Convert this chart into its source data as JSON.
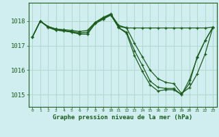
{
  "title": "Graphe pression niveau de la mer (hPa)",
  "background_color": "#d0eef0",
  "grid_color": "#b0d8cc",
  "line_color": "#1a5c1a",
  "text_color": "#1a5c1a",
  "xlim": [
    -0.5,
    23.5
  ],
  "ylim": [
    1014.5,
    1018.75
  ],
  "yticks": [
    1015,
    1016,
    1017,
    1018
  ],
  "xticks": [
    0,
    1,
    2,
    3,
    4,
    5,
    6,
    7,
    8,
    9,
    10,
    11,
    12,
    13,
    14,
    15,
    16,
    17,
    18,
    19,
    20,
    21,
    22,
    23
  ],
  "lines": [
    {
      "x": [
        0,
        1,
        2,
        3,
        4,
        5,
        6,
        7,
        8,
        9,
        10,
        11,
        12,
        13,
        14,
        15,
        16,
        17,
        18,
        19,
        20,
        21,
        22,
        23
      ],
      "y": [
        1017.35,
        1018.0,
        1017.78,
        1017.68,
        1017.65,
        1017.62,
        1017.58,
        1017.62,
        1017.95,
        1018.15,
        1018.3,
        1017.78,
        1017.72,
        1017.72,
        1017.72,
        1017.72,
        1017.72,
        1017.72,
        1017.72,
        1017.72,
        1017.72,
        1017.72,
        1017.72,
        1017.75
      ]
    },
    {
      "x": [
        0,
        1,
        2,
        3,
        4,
        5,
        6,
        7,
        8,
        9,
        10,
        11,
        12,
        13,
        14,
        15,
        16,
        17,
        18,
        19,
        20,
        21,
        22,
        23
      ],
      "y": [
        1017.35,
        1018.0,
        1017.78,
        1017.68,
        1017.62,
        1017.58,
        1017.52,
        1017.55,
        1017.95,
        1018.12,
        1018.28,
        1017.83,
        1017.73,
        1017.1,
        1016.55,
        1016.0,
        1015.65,
        1015.5,
        1015.45,
        1015.05,
        1015.28,
        1015.85,
        1016.65,
        1017.75
      ]
    },
    {
      "x": [
        0,
        1,
        2,
        3,
        4,
        5,
        6,
        7,
        8,
        9,
        10,
        11,
        12,
        13,
        14,
        15,
        16,
        17,
        18,
        19,
        20,
        21,
        22,
        23
      ],
      "y": [
        1017.35,
        1018.0,
        1017.75,
        1017.63,
        1017.6,
        1017.55,
        1017.48,
        1017.48,
        1017.9,
        1018.08,
        1018.25,
        1017.73,
        1017.55,
        1016.8,
        1016.2,
        1015.55,
        1015.3,
        1015.25,
        1015.25,
        1015.0,
        1015.45,
        1016.55,
        1017.2,
        1017.75
      ]
    },
    {
      "x": [
        0,
        1,
        2,
        3,
        4,
        5,
        6,
        7,
        8,
        9,
        10,
        11,
        12,
        13,
        14,
        15,
        16,
        17,
        18,
        19,
        20,
        21,
        22,
        23
      ],
      "y": [
        1017.35,
        1018.0,
        1017.75,
        1017.63,
        1017.6,
        1017.55,
        1017.47,
        1017.47,
        1017.9,
        1018.08,
        1018.25,
        1017.73,
        1017.5,
        1016.6,
        1015.95,
        1015.4,
        1015.15,
        1015.2,
        1015.2,
        1015.0,
        1015.6,
        1016.5,
        1017.2,
        1017.75
      ]
    }
  ]
}
